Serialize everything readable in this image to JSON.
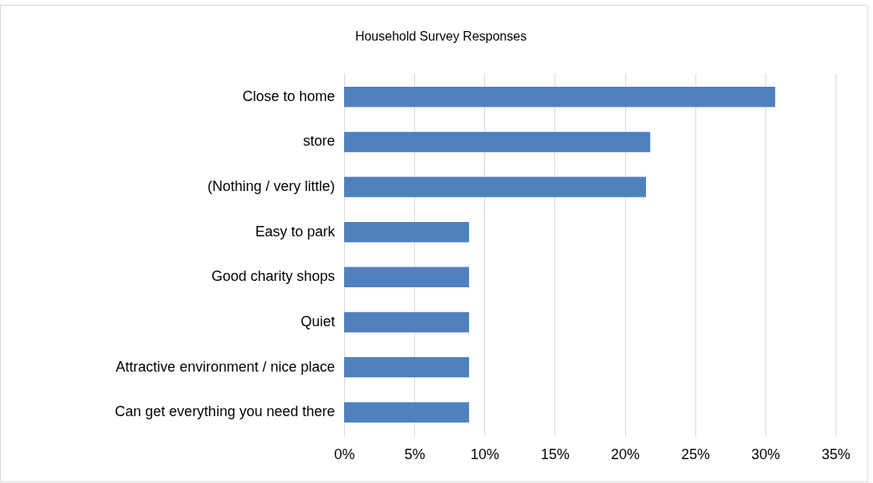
{
  "chart_data": {
    "type": "bar",
    "orientation": "horizontal",
    "title": "Household Survey Responses",
    "categories": [
      "Close to home",
      "store",
      "(Nothing / very little)",
      "Easy to park",
      "Good charity shops",
      "Quiet",
      "Attractive environment / nice place",
      "Can get everything you need there"
    ],
    "values": [
      30.7,
      21.8,
      21.5,
      8.9,
      8.9,
      8.9,
      8.9,
      8.9
    ],
    "color": "#4f81bd",
    "xlim": [
      0,
      35
    ],
    "xticks": [
      {
        "value": 0,
        "label": "0%"
      },
      {
        "value": 5,
        "label": "5%"
      },
      {
        "value": 10,
        "label": "10%"
      },
      {
        "value": 15,
        "label": "15%"
      },
      {
        "value": 20,
        "label": "20%"
      },
      {
        "value": 25,
        "label": "25%"
      },
      {
        "value": 30,
        "label": "30%"
      },
      {
        "value": 35,
        "label": "35%"
      }
    ],
    "grid": "x"
  }
}
